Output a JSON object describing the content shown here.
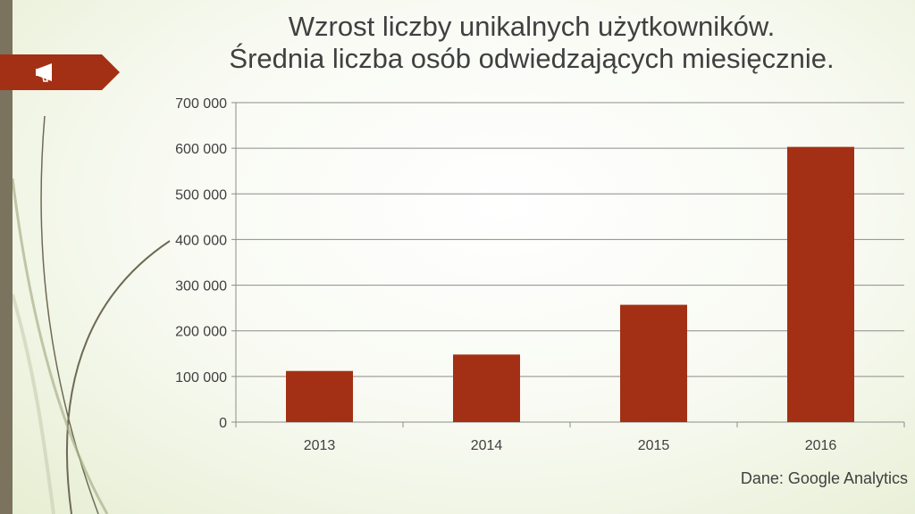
{
  "title_line1": "Wzrost liczby unikalnych użytkowników.",
  "title_line2": "Średnia liczba osób odwiedzających miesięcznie.",
  "source": "Dane: Google Analytics",
  "icon": "megaphone-icon",
  "colors": {
    "bar": "#a33014",
    "banner": "#a33014",
    "sidebar": "#7b735e"
  },
  "chart_data": {
    "type": "bar",
    "title": "Wzrost liczby unikalnych użytkowników. Średnia liczba osób odwiedzających miesięcznie.",
    "categories": [
      "2013",
      "2014",
      "2015",
      "2016"
    ],
    "values": [
      112000,
      148000,
      257000,
      603000
    ],
    "ylim": [
      0,
      700000
    ],
    "yticks": [
      0,
      100000,
      200000,
      300000,
      400000,
      500000,
      600000,
      700000
    ],
    "ytick_labels": [
      "0",
      "100 000",
      "200 000",
      "300 000",
      "400 000",
      "500 000",
      "600 000",
      "700 000"
    ],
    "grid": true,
    "legend": "none"
  }
}
